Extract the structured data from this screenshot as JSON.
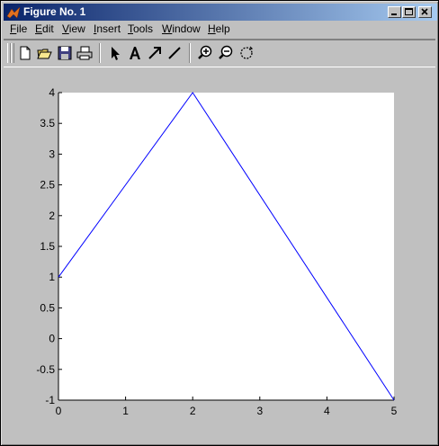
{
  "window": {
    "title": "Figure No. 1"
  },
  "menu": [
    {
      "pre": "",
      "u": "F",
      "post": "ile"
    },
    {
      "pre": "",
      "u": "E",
      "post": "dit"
    },
    {
      "pre": "",
      "u": "V",
      "post": "iew"
    },
    {
      "pre": "",
      "u": "I",
      "post": "nsert"
    },
    {
      "pre": "",
      "u": "T",
      "post": "ools"
    },
    {
      "pre": "",
      "u": "W",
      "post": "indow"
    },
    {
      "pre": "",
      "u": "H",
      "post": "elp"
    }
  ],
  "toolbar": {
    "icons": [
      "new-file-icon",
      "open-folder-icon",
      "save-icon",
      "print-icon",
      "select-arrow-icon",
      "insert-text-icon",
      "insert-arrow-icon",
      "insert-line-icon",
      "zoom-in-icon",
      "zoom-out-icon",
      "rotate-icon"
    ]
  },
  "chart_data": {
    "type": "line",
    "series": [
      {
        "x": [
          0,
          2,
          5
        ],
        "y": [
          1,
          4,
          -1
        ],
        "color": "#0000ff"
      }
    ],
    "xlim": [
      0,
      5
    ],
    "ylim": [
      -1,
      4
    ],
    "xticks": [
      "0",
      "1",
      "2",
      "3",
      "4",
      "5"
    ],
    "yticks": [
      "-1",
      "-0.5",
      "0",
      "0.5",
      "1",
      "1.5",
      "2",
      "2.5",
      "3",
      "3.5",
      "4"
    ],
    "grid": false,
    "background": "#ffffff",
    "figure_background": "#c0c0c0"
  }
}
